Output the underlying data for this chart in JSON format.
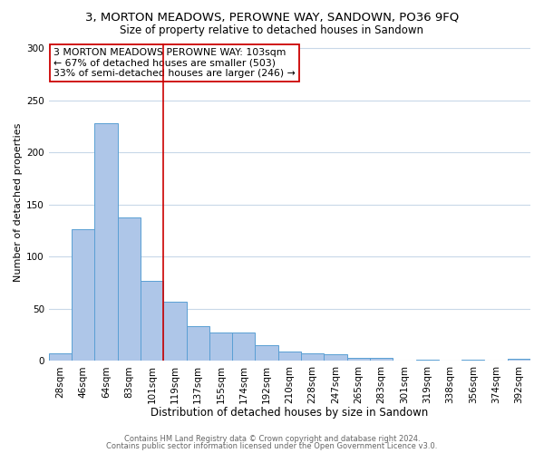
{
  "title": "3, MORTON MEADOWS, PEROWNE WAY, SANDOWN, PO36 9FQ",
  "subtitle": "Size of property relative to detached houses in Sandown",
  "xlabel": "Distribution of detached houses by size in Sandown",
  "ylabel": "Number of detached properties",
  "categories": [
    "28sqm",
    "46sqm",
    "64sqm",
    "83sqm",
    "101sqm",
    "119sqm",
    "137sqm",
    "155sqm",
    "174sqm",
    "192sqm",
    "210sqm",
    "228sqm",
    "247sqm",
    "265sqm",
    "283sqm",
    "301sqm",
    "319sqm",
    "338sqm",
    "356sqm",
    "374sqm",
    "392sqm"
  ],
  "values": [
    7,
    126,
    228,
    138,
    77,
    57,
    33,
    27,
    27,
    15,
    9,
    7,
    6,
    3,
    3,
    0,
    1,
    0,
    1,
    0,
    2
  ],
  "bar_color": "#aec6e8",
  "bar_edge_color": "#5a9fd4",
  "vline_x": 4.5,
  "vline_color": "#cc0000",
  "annotation_text": "3 MORTON MEADOWS PEROWNE WAY: 103sqm\n← 67% of detached houses are smaller (503)\n33% of semi-detached houses are larger (246) →",
  "annotation_box_color": "#ffffff",
  "annotation_box_edge_color": "#cc0000",
  "ylim": [
    0,
    305
  ],
  "yticks": [
    0,
    50,
    100,
    150,
    200,
    250,
    300
  ],
  "grid_color": "#c8d8e8",
  "background_color": "#ffffff",
  "title_fontsize": 9.5,
  "subtitle_fontsize": 8.5,
  "xlabel_fontsize": 8.5,
  "ylabel_fontsize": 8,
  "tick_fontsize": 7.5,
  "annotation_fontsize": 7.8,
  "footer_line1": "Contains HM Land Registry data © Crown copyright and database right 2024.",
  "footer_line2": "Contains public sector information licensed under the Open Government Licence v3.0."
}
